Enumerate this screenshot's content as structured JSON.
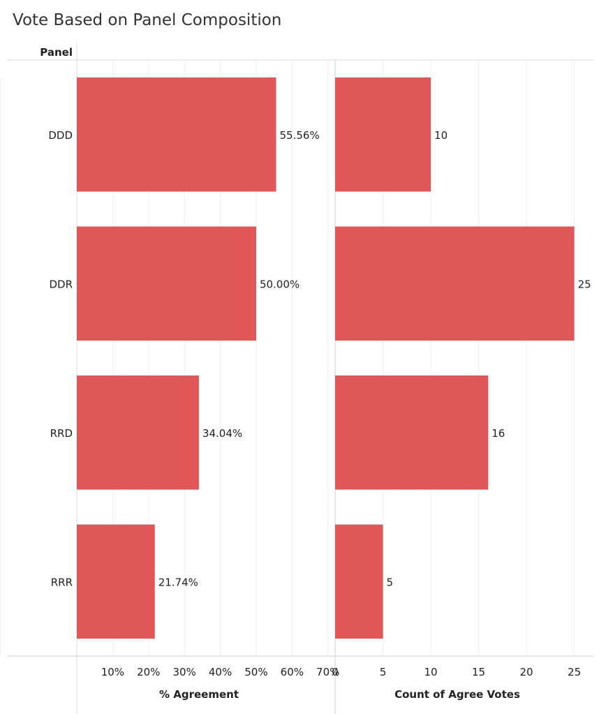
{
  "title": "Vote Based on Panel Composition",
  "chart_data": {
    "type": "bar",
    "orientation": "horizontal",
    "row_header": "Panel",
    "categories": [
      "DDD",
      "DDR",
      "RRD",
      "RRR"
    ],
    "bar_color": "#e15759",
    "panels": [
      {
        "axis_title": "% Agreement",
        "values": [
          55.56,
          50.0,
          34.04,
          21.74
        ],
        "value_labels": [
          "55.56%",
          "50.00%",
          "34.04%",
          "21.74%"
        ],
        "xlim": [
          0,
          72
        ],
        "ticks": [
          10,
          20,
          30,
          40,
          50,
          60,
          70
        ],
        "tick_labels": [
          "10%",
          "20%",
          "30%",
          "40%",
          "50%",
          "60%",
          "70%"
        ]
      },
      {
        "axis_title": "Count of Agree Votes",
        "values": [
          10,
          25,
          16,
          5
        ],
        "value_labels": [
          "10",
          "25",
          "16",
          "5"
        ],
        "xlim": [
          0,
          27
        ],
        "ticks": [
          0,
          5,
          10,
          15,
          20,
          25
        ],
        "tick_labels": [
          "0",
          "5",
          "10",
          "15",
          "20",
          "25"
        ]
      }
    ],
    "grid": true,
    "legend": "none"
  }
}
